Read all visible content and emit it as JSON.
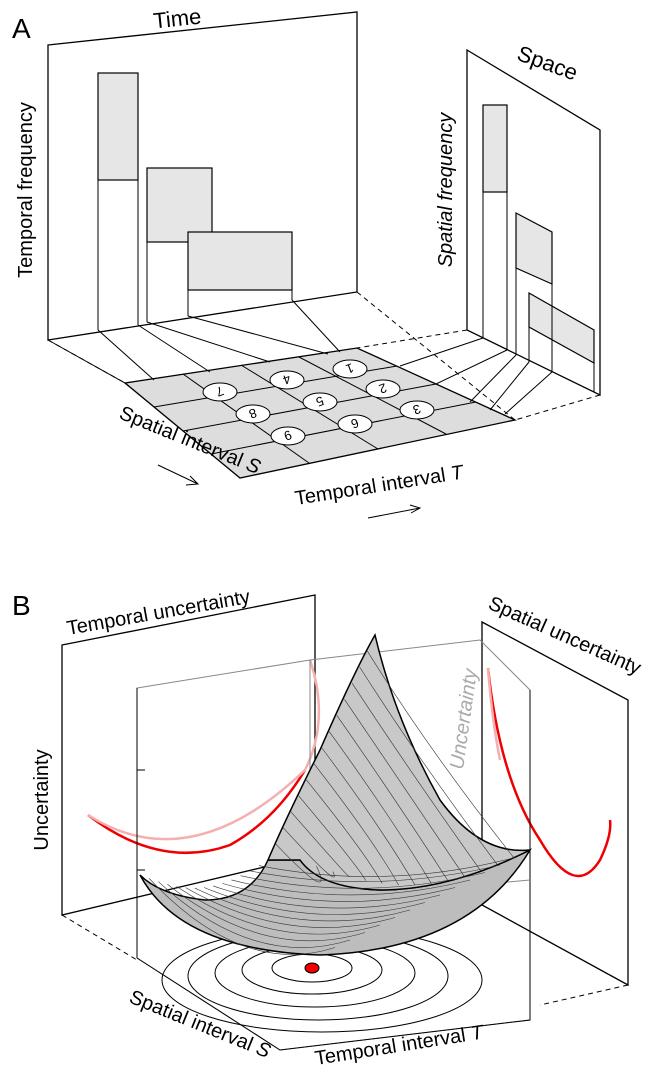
{
  "panel_a": {
    "label": "A",
    "time_panel": {
      "title": "Time",
      "axis_label": "Temporal frequency"
    },
    "space_panel": {
      "title": "Space",
      "axis_label": "Spatial frequency"
    },
    "grid_cells": [
      "1",
      "2",
      "3",
      "4",
      "5",
      "6",
      "7",
      "8",
      "9"
    ],
    "spatial_axis": {
      "text": "Spatial interval",
      "variable": "S"
    },
    "temporal_axis": {
      "text": "Temporal interval",
      "variable": "T"
    }
  },
  "panel_b": {
    "label": "B",
    "temporal_panel": {
      "title": "Temporal uncertainty"
    },
    "spatial_panel": {
      "title": "Spatial uncertainty"
    },
    "y_axis_label": "Uncertainty",
    "inner_axis_label": "Uncertainty",
    "spatial_axis": {
      "text": "Spatial interval",
      "variable": "S"
    },
    "temporal_axis": {
      "text": "Temporal interval",
      "variable": "T"
    }
  }
}
